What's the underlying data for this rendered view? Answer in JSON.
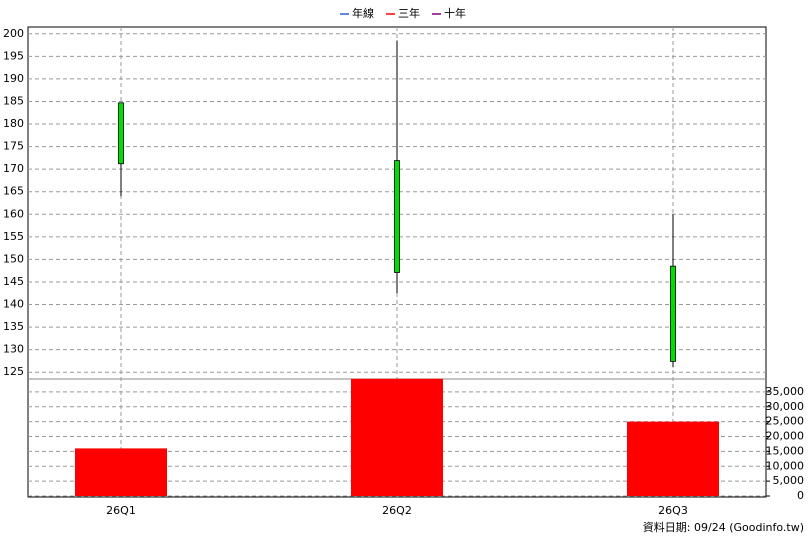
{
  "chart_data": {
    "type": "candlestick",
    "legend": [
      {
        "name": "年線",
        "color": "#3060d0"
      },
      {
        "name": "三年",
        "color": "#ff0000"
      },
      {
        "name": "十年",
        "color": "#800080"
      }
    ],
    "categories": [
      "26Q1",
      "26Q2",
      "26Q3"
    ],
    "open": [
      171.2,
      147.1,
      127.4
    ],
    "high": [
      184.7,
      198.5,
      160
    ],
    "low": [
      164,
      142.5,
      126.1
    ],
    "close": [
      184.7,
      171.9,
      148.5
    ],
    "candle_color": "#00dd00",
    "volume": [
      16000,
      39400,
      25000
    ],
    "volume_color": "#ff0000",
    "ylim": [
      123.5,
      201.5
    ],
    "yticks": [
      125,
      130,
      135,
      140,
      145,
      150,
      155,
      160,
      165,
      170,
      175,
      180,
      185,
      190,
      195,
      200
    ],
    "y2lim": [
      0,
      40000
    ],
    "y2ticks": [
      0,
      {
        "value": 5000,
        "label": "5,000"
      },
      {
        "value": 10000,
        "label": "10,000"
      },
      {
        "value": 15000,
        "label": "15,000"
      },
      {
        "value": 20000,
        "label": "20,000"
      },
      {
        "value": 25000,
        "label": "25,000"
      },
      {
        "value": 30000,
        "label": "30,000"
      },
      {
        "value": 35000,
        "label": "35,000"
      }
    ],
    "grid": true,
    "footer": "資料日期: 09/24  (Goodinfo.tw)"
  }
}
